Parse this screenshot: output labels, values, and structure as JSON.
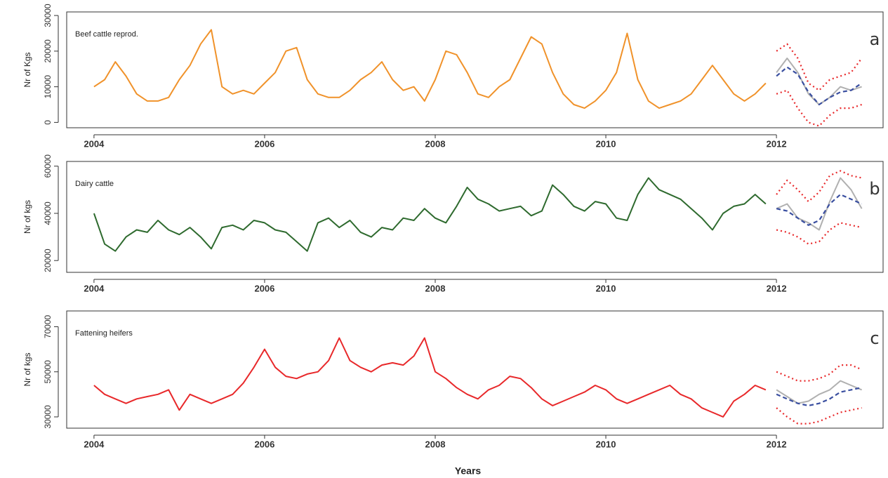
{
  "chart_data": [
    {
      "type": "line",
      "annotation": "Beef cattle reprod.",
      "panel": "a",
      "ylabel": "Nr of Kgs",
      "xlim": [
        2003.68,
        2013.25
      ],
      "xticks": [
        2004,
        2006,
        2008,
        2010,
        2012
      ],
      "ylim": [
        -1500,
        31000
      ],
      "yticks": [
        0,
        10000,
        20000,
        30000
      ],
      "series": [
        {
          "color": "#f0922a",
          "style": "solid",
          "x": [
            2004,
            2004.125,
            2004.25,
            2004.375,
            2004.5,
            2004.625,
            2004.75,
            2004.875,
            2005,
            2005.125,
            2005.25,
            2005.375,
            2005.5,
            2005.625,
            2005.75,
            2005.875,
            2006,
            2006.125,
            2006.25,
            2006.375,
            2006.5,
            2006.625,
            2006.75,
            2006.875,
            2007,
            2007.125,
            2007.25,
            2007.375,
            2007.5,
            2007.625,
            2007.75,
            2007.875,
            2008,
            2008.125,
            2008.25,
            2008.375,
            2008.5,
            2008.625,
            2008.75,
            2008.875,
            2009,
            2009.125,
            2009.25,
            2009.375,
            2009.5,
            2009.625,
            2009.75,
            2009.875,
            2010,
            2010.125,
            2010.25,
            2010.375,
            2010.5,
            2010.625,
            2010.75,
            2010.875,
            2011,
            2011.125,
            2011.25,
            2011.375,
            2011.5,
            2011.625,
            2011.75,
            2011.875
          ],
          "values": [
            10000,
            12000,
            17000,
            13000,
            8000,
            6000,
            6000,
            7000,
            12000,
            16000,
            22000,
            26000,
            10000,
            8000,
            9000,
            8000,
            11000,
            14000,
            20000,
            21000,
            12000,
            8000,
            7000,
            7000,
            9000,
            12000,
            14000,
            17000,
            12000,
            9000,
            10000,
            6000,
            12000,
            20000,
            19000,
            14000,
            8000,
            7000,
            10000,
            12000,
            18000,
            24000,
            22000,
            14000,
            8000,
            5000,
            4000,
            6000,
            9000,
            14000,
            25000,
            12000,
            6000,
            4000,
            5000,
            6000,
            8000,
            12000,
            16000,
            12000,
            8000,
            6000,
            8000,
            11000
          ]
        },
        {
          "color": "#b0b0b0",
          "style": "solid",
          "x": [
            2012,
            2012.125,
            2012.25,
            2012.375,
            2012.5,
            2012.625,
            2012.75,
            2012.875,
            2013
          ],
          "values": [
            14000,
            18000,
            14000,
            8000,
            5000,
            7000,
            10000,
            9000,
            10000
          ]
        },
        {
          "color": "#3a4fa0",
          "style": "dashed",
          "x": [
            2012,
            2012.125,
            2012.25,
            2012.375,
            2012.5,
            2012.625,
            2012.75,
            2012.875,
            2013
          ],
          "values": [
            13000,
            15500,
            13500,
            8500,
            5000,
            7000,
            8500,
            9000,
            11000
          ]
        },
        {
          "color": "#e8282a",
          "style": "dotted",
          "x": [
            2012,
            2012.125,
            2012.25,
            2012.375,
            2012.5,
            2012.625,
            2012.75,
            2012.875,
            2013
          ],
          "values": [
            20000,
            22000,
            18000,
            11000,
            9000,
            12000,
            13000,
            14000,
            18000
          ]
        },
        {
          "color": "#e8282a",
          "style": "dotted",
          "x": [
            2012,
            2012.125,
            2012.25,
            2012.375,
            2012.5,
            2012.625,
            2012.75,
            2012.875,
            2013
          ],
          "values": [
            8000,
            9000,
            4000,
            0,
            -1000,
            2000,
            4000,
            4000,
            5000
          ]
        }
      ]
    },
    {
      "type": "line",
      "annotation": "Dairy cattle",
      "panel": "b",
      "ylabel": "Nr of kgs",
      "xlim": [
        2003.68,
        2013.25
      ],
      "xticks": [
        2004,
        2006,
        2008,
        2010,
        2012
      ],
      "ylim": [
        15000,
        62000
      ],
      "yticks": [
        20000,
        40000,
        60000
      ],
      "series": [
        {
          "color": "#2e6a2e",
          "style": "solid",
          "x": [
            2004,
            2004.125,
            2004.25,
            2004.375,
            2004.5,
            2004.625,
            2004.75,
            2004.875,
            2005,
            2005.125,
            2005.25,
            2005.375,
            2005.5,
            2005.625,
            2005.75,
            2005.875,
            2006,
            2006.125,
            2006.25,
            2006.375,
            2006.5,
            2006.625,
            2006.75,
            2006.875,
            2007,
            2007.125,
            2007.25,
            2007.375,
            2007.5,
            2007.625,
            2007.75,
            2007.875,
            2008,
            2008.125,
            2008.25,
            2008.375,
            2008.5,
            2008.625,
            2008.75,
            2008.875,
            2009,
            2009.125,
            2009.25,
            2009.375,
            2009.5,
            2009.625,
            2009.75,
            2009.875,
            2010,
            2010.125,
            2010.25,
            2010.375,
            2010.5,
            2010.625,
            2010.75,
            2010.875,
            2011,
            2011.125,
            2011.25,
            2011.375,
            2011.5,
            2011.625,
            2011.75,
            2011.875
          ],
          "values": [
            40000,
            27000,
            24000,
            30000,
            33000,
            32000,
            37000,
            33000,
            31000,
            34000,
            30000,
            25000,
            34000,
            35000,
            33000,
            37000,
            36000,
            33000,
            32000,
            28000,
            24000,
            36000,
            38000,
            34000,
            37000,
            32000,
            30000,
            34000,
            33000,
            38000,
            37000,
            42000,
            38000,
            36000,
            43000,
            51000,
            46000,
            44000,
            41000,
            42000,
            43000,
            39000,
            41000,
            52000,
            48000,
            43000,
            41000,
            45000,
            44000,
            38000,
            37000,
            48000,
            55000,
            50000,
            48000,
            46000,
            42000,
            38000,
            33000,
            40000,
            43000,
            44000,
            48000,
            44000
          ]
        },
        {
          "color": "#b0b0b0",
          "style": "solid",
          "x": [
            2012,
            2012.125,
            2012.25,
            2012.375,
            2012.5,
            2012.625,
            2012.75,
            2012.875,
            2013
          ],
          "values": [
            42000,
            44000,
            38000,
            36000,
            33000,
            45000,
            55000,
            50000,
            42000
          ]
        },
        {
          "color": "#3a4fa0",
          "style": "dashed",
          "x": [
            2012,
            2012.125,
            2012.25,
            2012.375,
            2012.5,
            2012.625,
            2012.75,
            2012.875,
            2013
          ],
          "values": [
            42000,
            41000,
            38000,
            35000,
            37000,
            44000,
            48000,
            46000,
            44000
          ]
        },
        {
          "color": "#e8282a",
          "style": "dotted",
          "x": [
            2012,
            2012.125,
            2012.25,
            2012.375,
            2012.5,
            2012.625,
            2012.75,
            2012.875,
            2013
          ],
          "values": [
            48000,
            54000,
            50000,
            45000,
            49000,
            56000,
            58000,
            56000,
            55000
          ]
        },
        {
          "color": "#e8282a",
          "style": "dotted",
          "x": [
            2012,
            2012.125,
            2012.25,
            2012.375,
            2012.5,
            2012.625,
            2012.75,
            2012.875,
            2013
          ],
          "values": [
            33000,
            32000,
            30000,
            27000,
            28000,
            33000,
            36000,
            35000,
            34000
          ]
        }
      ]
    },
    {
      "type": "line",
      "annotation": "Fattening heifers",
      "panel": "c",
      "ylabel": "Nr of kgs",
      "xlabel": "Years",
      "xlim": [
        2003.68,
        2013.25
      ],
      "xticks": [
        2004,
        2006,
        2008,
        2010,
        2012
      ],
      "ylim": [
        25000,
        77000
      ],
      "yticks": [
        30000,
        50000,
        70000
      ],
      "series": [
        {
          "color": "#e8282a",
          "style": "solid",
          "x": [
            2004,
            2004.125,
            2004.25,
            2004.375,
            2004.5,
            2004.625,
            2004.75,
            2004.875,
            2005,
            2005.125,
            2005.25,
            2005.375,
            2005.5,
            2005.625,
            2005.75,
            2005.875,
            2006,
            2006.125,
            2006.25,
            2006.375,
            2006.5,
            2006.625,
            2006.75,
            2006.875,
            2007,
            2007.125,
            2007.25,
            2007.375,
            2007.5,
            2007.625,
            2007.75,
            2007.875,
            2008,
            2008.125,
            2008.25,
            2008.375,
            2008.5,
            2008.625,
            2008.75,
            2008.875,
            2009,
            2009.125,
            2009.25,
            2009.375,
            2009.5,
            2009.625,
            2009.75,
            2009.875,
            2010,
            2010.125,
            2010.25,
            2010.375,
            2010.5,
            2010.625,
            2010.75,
            2010.875,
            2011,
            2011.125,
            2011.25,
            2011.375,
            2011.5,
            2011.625,
            2011.75,
            2011.875
          ],
          "values": [
            44000,
            40000,
            38000,
            36000,
            38000,
            39000,
            40000,
            42000,
            33000,
            40000,
            38000,
            36000,
            38000,
            40000,
            45000,
            52000,
            60000,
            52000,
            48000,
            47000,
            49000,
            50000,
            55000,
            65000,
            55000,
            52000,
            50000,
            53000,
            54000,
            53000,
            57000,
            65000,
            50000,
            47000,
            43000,
            40000,
            38000,
            42000,
            44000,
            48000,
            47000,
            43000,
            38000,
            35000,
            37000,
            39000,
            41000,
            44000,
            42000,
            38000,
            36000,
            38000,
            40000,
            42000,
            44000,
            40000,
            38000,
            34000,
            32000,
            30000,
            37000,
            40000,
            44000,
            42000
          ]
        },
        {
          "color": "#b0b0b0",
          "style": "solid",
          "x": [
            2012,
            2012.125,
            2012.25,
            2012.375,
            2012.5,
            2012.625,
            2012.75,
            2012.875,
            2013
          ],
          "values": [
            42000,
            39000,
            36000,
            37000,
            40000,
            42000,
            46000,
            44000,
            42000
          ]
        },
        {
          "color": "#3a4fa0",
          "style": "dashed",
          "x": [
            2012,
            2012.125,
            2012.25,
            2012.375,
            2012.5,
            2012.625,
            2012.75,
            2012.875,
            2013
          ],
          "values": [
            40000,
            38000,
            36000,
            35000,
            36000,
            38000,
            41000,
            42000,
            43000
          ]
        },
        {
          "color": "#e8282a",
          "style": "dotted",
          "x": [
            2012,
            2012.125,
            2012.25,
            2012.375,
            2012.5,
            2012.625,
            2012.75,
            2012.875,
            2013
          ],
          "values": [
            50000,
            48000,
            46000,
            46000,
            47000,
            49000,
            53000,
            53000,
            51000
          ]
        },
        {
          "color": "#e8282a",
          "style": "dotted",
          "x": [
            2012,
            2012.125,
            2012.25,
            2012.375,
            2012.5,
            2012.625,
            2012.75,
            2012.875,
            2013
          ],
          "values": [
            34000,
            30000,
            27000,
            27000,
            28000,
            30000,
            32000,
            33000,
            34000
          ]
        }
      ]
    }
  ]
}
